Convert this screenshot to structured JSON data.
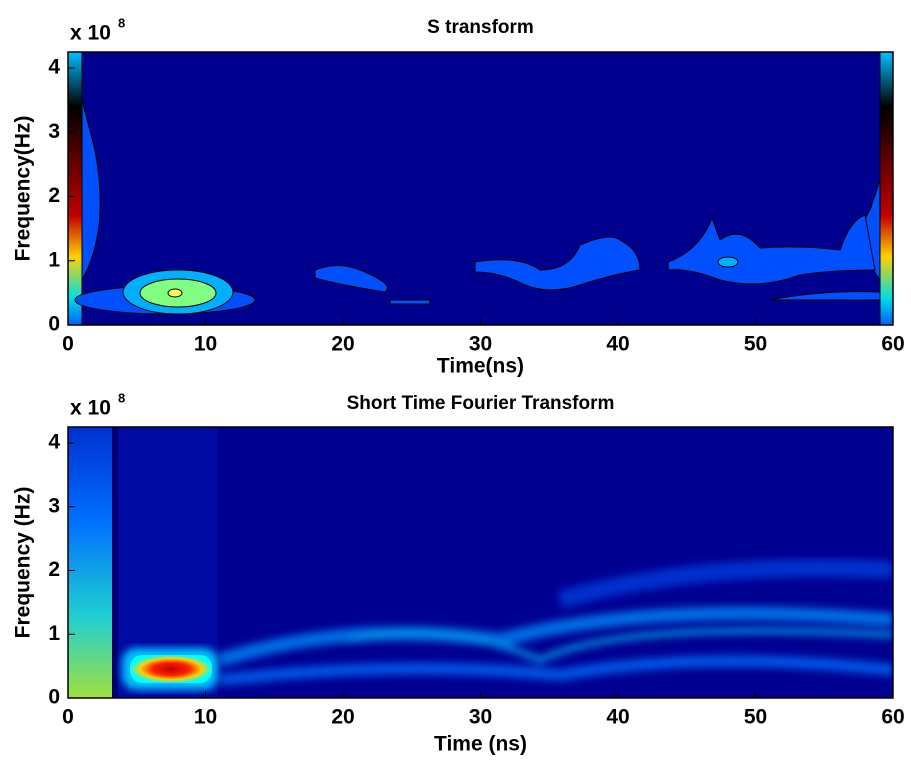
{
  "chart_data": [
    {
      "type": "contour",
      "title": "S transform",
      "xlabel": "Time(ns)",
      "ylabel": "Frequency(Hz)",
      "y_multiplier": "x 10",
      "y_multiplier_exponent": "8",
      "xlim": [
        0,
        60
      ],
      "xticks": [
        0,
        10,
        20,
        30,
        40,
        50,
        60
      ],
      "ylim": [
        0,
        4.25
      ],
      "yticks": [
        0,
        1,
        2,
        3,
        4
      ]
    },
    {
      "type": "spectrogram",
      "title": "Short Time Fourier Transform",
      "xlabel": "Time (ns)",
      "ylabel": "Frequency (Hz)",
      "y_multiplier": "x 10",
      "y_multiplier_exponent": "8",
      "xlim": [
        0,
        60
      ],
      "xticks": [
        0,
        10,
        20,
        30,
        40,
        50,
        60
      ],
      "ylim": [
        0,
        4.25
      ],
      "yticks": [
        0,
        1,
        2,
        3,
        4
      ]
    }
  ]
}
